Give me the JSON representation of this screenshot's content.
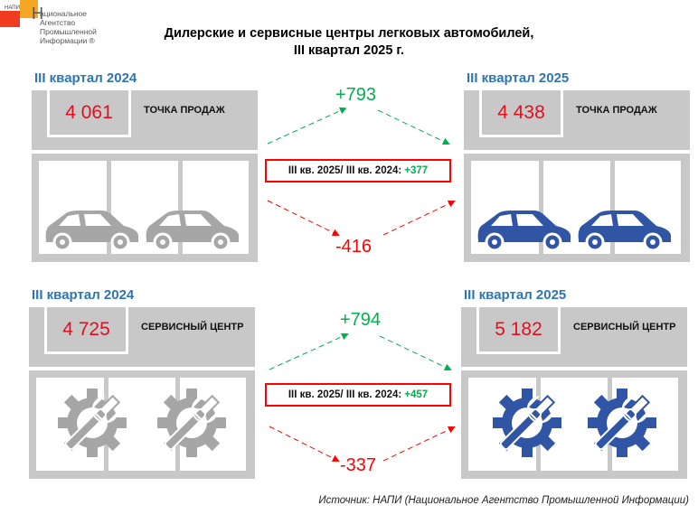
{
  "logo": {
    "abbr": "НАПИ",
    "letter": "Н",
    "lines": [
      "ациональное",
      "Агентство",
      "Промышленной",
      "Информации ®"
    ]
  },
  "title": {
    "line1": "Дилерские и сервисные центры легковых автомобилей,",
    "line2": "III квартал  2025 г."
  },
  "colors": {
    "heading": "#2e75b6",
    "number": "#e0101e",
    "increase": "#00b050",
    "decrease": "#ff0000",
    "panel": "#c8c8c8",
    "icon_2024": "#a6a6a6",
    "icon_2025": "#2f55a4"
  },
  "sales": {
    "left": {
      "heading": "III квартал 2024",
      "value": "4 061",
      "label": "ТОЧКА ПРОДАЖ",
      "icon": "car-icon"
    },
    "right": {
      "heading": "III квартал 2025",
      "value": "4 438",
      "label": "ТОЧКА ПРОДАЖ",
      "icon": "car-icon"
    },
    "increase": "+793",
    "decrease": "-416",
    "comparison": "III кв. 2025/ III кв. 2024:",
    "net": "+377"
  },
  "service": {
    "left": {
      "heading": "III квартал 2024",
      "value": "4 725",
      "label": "СЕРВИСНЫЙ ЦЕНТР",
      "icon": "gear-wrench-icon"
    },
    "right": {
      "heading": "III квартал 2025",
      "value": "5 182",
      "label": "СЕРВИСНЫЙ ЦЕНТР",
      "icon": "gear-wrench-icon"
    },
    "increase": "+794",
    "decrease": "-337",
    "comparison": "III кв. 2025/ III кв. 2024:",
    "net": "+457"
  },
  "source": "Источник: НАПИ (Национальное Агентство Промышленной Информации)"
}
